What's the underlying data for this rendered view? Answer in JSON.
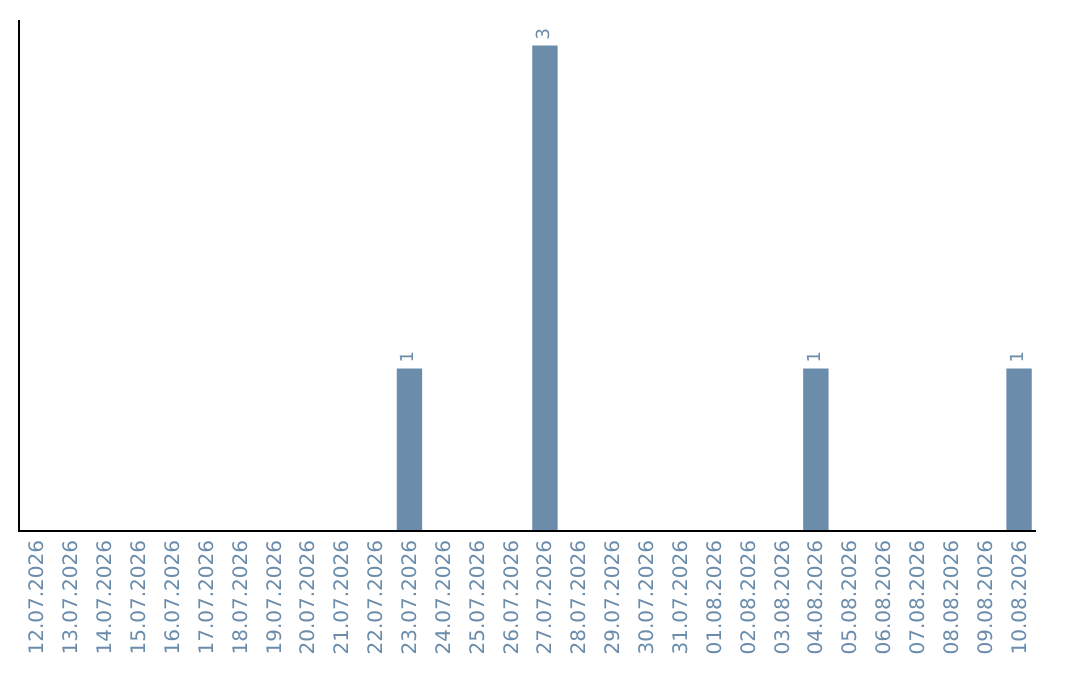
{
  "chart_data": {
    "type": "bar",
    "categories": [
      "12.07.2026",
      "13.07.2026",
      "14.07.2026",
      "15.07.2026",
      "16.07.2026",
      "17.07.2026",
      "18.07.2026",
      "19.07.2026",
      "20.07.2026",
      "21.07.2026",
      "22.07.2026",
      "23.07.2026",
      "24.07.2026",
      "25.07.2026",
      "26.07.2026",
      "27.07.2026",
      "28.07.2026",
      "29.07.2026",
      "30.07.2026",
      "31.07.2026",
      "01.08.2026",
      "02.08.2026",
      "03.08.2026",
      "04.08.2026",
      "05.08.2026",
      "06.08.2026",
      "07.08.2026",
      "08.08.2026",
      "09.08.2026",
      "10.08.2026"
    ],
    "values": [
      0,
      0,
      0,
      0,
      0,
      0,
      0,
      0,
      0,
      0,
      0,
      1,
      0,
      0,
      0,
      3,
      0,
      0,
      0,
      0,
      0,
      0,
      0,
      1,
      0,
      0,
      0,
      0,
      0,
      1
    ],
    "value_labels": [
      null,
      null,
      null,
      null,
      null,
      null,
      null,
      null,
      null,
      null,
      null,
      "1",
      null,
      null,
      null,
      "3",
      null,
      null,
      null,
      null,
      null,
      null,
      null,
      "1",
      null,
      null,
      null,
      null,
      null,
      "1"
    ],
    "color": "#6b8cab",
    "tick_labels": "x",
    "legend": false
  }
}
